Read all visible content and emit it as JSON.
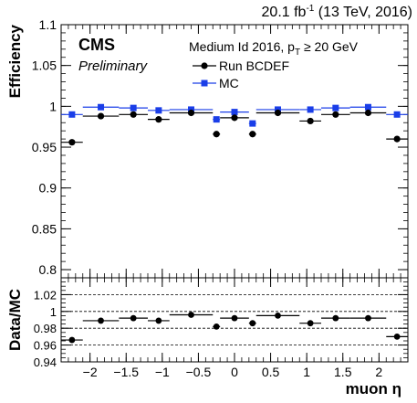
{
  "header": {
    "lumi": "20.1 fb",
    "lumi_exp": "-1",
    "lumi_tail": " (13 TeV, 2016)"
  },
  "labels": {
    "cms": "CMS",
    "preliminary": "Preliminary",
    "selection": "Medium Id 2016, p",
    "selection_sub": "T",
    "selection_tail": " ≥ 20 GeV"
  },
  "chart_data": [
    {
      "type": "scatter",
      "xlabel": "",
      "ylabel": "Efficiency",
      "xlim": [
        -2.4,
        2.4
      ],
      "ylim": [
        0.79,
        1.1
      ],
      "yticks": [
        0.8,
        0.85,
        0.9,
        0.95,
        1,
        1.05,
        1.1
      ],
      "yticklabels": [
        "0.8",
        "0.85",
        "0.9",
        "0.95",
        "1",
        "1.05",
        "1.1"
      ],
      "legend_position": "top-right",
      "x_bin_edges": [
        -2.4,
        -2.1,
        -1.6,
        -1.2,
        -0.9,
        -0.3,
        -0.2,
        0.2,
        0.3,
        0.9,
        1.2,
        1.6,
        2.1,
        2.4
      ],
      "series": [
        {
          "name": "Run BCDEF",
          "color": "#000000",
          "marker": "circle",
          "x": [
            -2.25,
            -1.85,
            -1.4,
            -1.05,
            -0.6,
            -0.25,
            0.0,
            0.25,
            0.6,
            1.05,
            1.4,
            1.85,
            2.25
          ],
          "values": [
            0.956,
            0.988,
            0.99,
            0.984,
            0.992,
            0.966,
            0.986,
            0.966,
            0.992,
            0.982,
            0.99,
            0.992,
            0.96
          ]
        },
        {
          "name": "MC",
          "color": "#1a3ee8",
          "marker": "square",
          "x": [
            -2.25,
            -1.85,
            -1.4,
            -1.05,
            -0.6,
            -0.25,
            0.0,
            0.25,
            0.6,
            1.05,
            1.4,
            1.85,
            2.25
          ],
          "values": [
            0.99,
            0.999,
            0.998,
            0.995,
            0.996,
            0.984,
            0.993,
            0.979,
            0.996,
            0.996,
            0.998,
            0.999,
            0.99
          ]
        }
      ]
    },
    {
      "type": "scatter",
      "xlabel": "muon η",
      "ylabel": "Data/MC",
      "xlim": [
        -2.4,
        2.4
      ],
      "ylim": [
        0.94,
        1.04
      ],
      "yticks": [
        0.94,
        0.96,
        0.98,
        1,
        1.02
      ],
      "yticklabels": [
        "0.94",
        "0.96",
        "0.98",
        "1",
        "1.02"
      ],
      "xticks": [
        -2,
        -1.5,
        -1,
        -0.5,
        0,
        0.5,
        1,
        1.5,
        2
      ],
      "xticklabels": [
        "−2",
        "−1.5",
        "−1",
        "−0.5",
        "0",
        "0.5",
        "1",
        "1.5",
        "2"
      ],
      "reference_lines": [
        0.96,
        0.98,
        1,
        1.02
      ],
      "series": [
        {
          "name": "",
          "color": "#000000",
          "marker": "circle",
          "x": [
            -2.25,
            -1.85,
            -1.4,
            -1.05,
            -0.6,
            -0.25,
            0.0,
            0.25,
            0.6,
            1.05,
            1.4,
            1.85,
            2.25
          ],
          "values": [
            0.966,
            0.989,
            0.992,
            0.989,
            0.996,
            0.982,
            0.992,
            0.986,
            0.995,
            0.986,
            0.992,
            0.992,
            0.97
          ]
        }
      ]
    }
  ]
}
